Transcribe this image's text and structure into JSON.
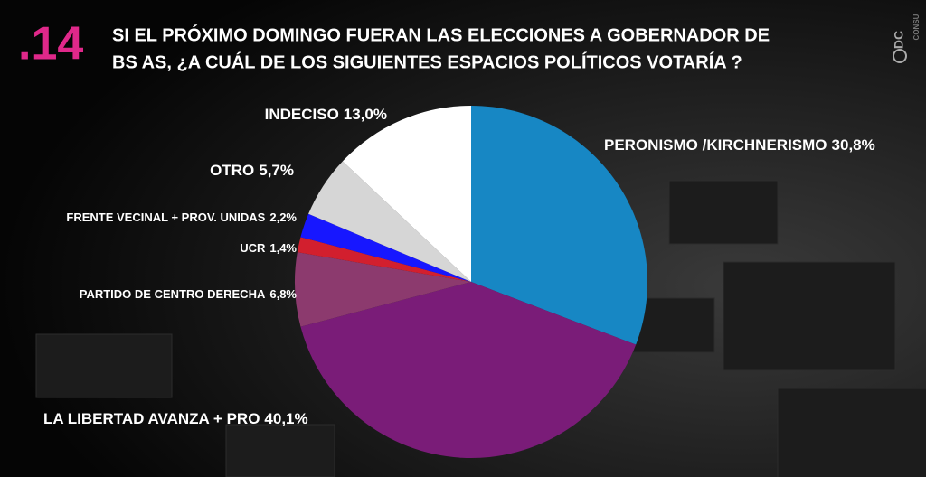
{
  "chart_data": {
    "type": "pie",
    "number": ".14",
    "title_lines": [
      "SI EL PRÓXIMO DOMINGO FUERAN LAS ELECCIONES A GOBERNADOR DE",
      "BS AS, ¿A CUÁL DE LOS SIGUIENTES ESPACIOS POLÍTICOS VOTARÍA ?"
    ],
    "brand": "DC",
    "brand_sub": "CONSU",
    "categories": [
      "PERONISMO /KIRCHNERISMO",
      "LA LIBERTAD AVANZA + PRO",
      "PARTIDO DE CENTRO DERECHA",
      "UCR",
      "FRENTE VECINAL + PROV. UNIDAS",
      "OTRO",
      "INDECISO"
    ],
    "values": [
      30.8,
      40.1,
      6.8,
      1.4,
      2.2,
      5.7,
      13.0
    ],
    "value_labels": [
      "30,8%",
      "40,1%",
      "6,8%",
      "1,4%",
      "2,2%",
      "5,7%",
      "13,0%"
    ],
    "colors": [
      "#1787c4",
      "#7a1c78",
      "#8c3a6e",
      "#d21f2e",
      "#1717ff",
      "#d6d6d6",
      "#ffffff"
    ]
  }
}
